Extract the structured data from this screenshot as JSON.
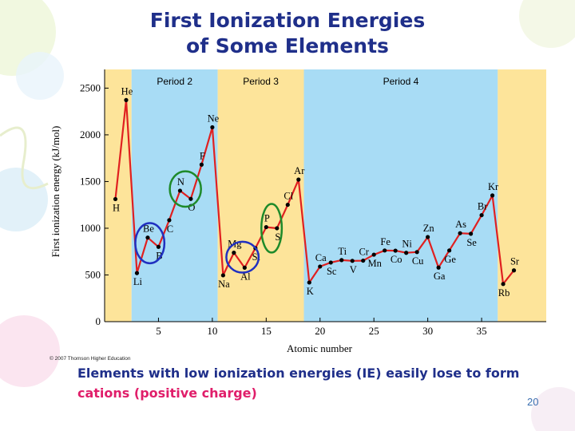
{
  "slide": {
    "title_line1": "First Ionization Energies",
    "title_line2": "of Some Elements",
    "caption_main": "Elements with low ionization energies (IE) easily lose to form",
    "caption_highlight": "cations (positive charge)",
    "copyright": "© 2007 Thomson Higher Education",
    "slide_number": "20",
    "colors": {
      "title": "#1f2f8a",
      "highlight": "#e01e6a",
      "line": "#e02020",
      "period_yellow": "#fde49a",
      "period_blue": "#a8dcf5",
      "circle_green": "#1e8a2a",
      "circle_blue": "#2030c0"
    }
  },
  "chart_data": {
    "type": "line",
    "xlabel": "Atomic number",
    "ylabel": "First ionization energy (kJ/mol)",
    "xlim": [
      0,
      41
    ],
    "ylim": [
      0,
      2700
    ],
    "x_ticks": [
      5,
      10,
      15,
      20,
      25,
      30,
      35
    ],
    "y_ticks": [
      0,
      500,
      1000,
      1500,
      2000,
      2500
    ],
    "periods": [
      {
        "label": "",
        "from": 0,
        "to": 2.5,
        "color": "yellow"
      },
      {
        "label": "Period 2",
        "from": 2.5,
        "to": 10.5,
        "color": "blue"
      },
      {
        "label": "Period 3",
        "from": 10.5,
        "to": 18.5,
        "color": "yellow"
      },
      {
        "label": "Period 4",
        "from": 18.5,
        "to": 36.5,
        "color": "blue"
      },
      {
        "label": "",
        "from": 36.5,
        "to": 41,
        "color": "yellow"
      }
    ],
    "series": [
      {
        "points": [
          {
            "z": 1,
            "symbol": "H",
            "ie": 1312,
            "pos": "below"
          },
          {
            "z": 2,
            "symbol": "He",
            "ie": 2372,
            "pos": "above"
          },
          {
            "z": 3,
            "symbol": "Li",
            "ie": 520,
            "pos": "below"
          },
          {
            "z": 4,
            "symbol": "Be",
            "ie": 900,
            "pos": "above"
          },
          {
            "z": 5,
            "symbol": "B",
            "ie": 801,
            "pos": "below"
          },
          {
            "z": 6,
            "symbol": "C",
            "ie": 1086,
            "pos": "below"
          },
          {
            "z": 7,
            "symbol": "N",
            "ie": 1402,
            "pos": "above"
          },
          {
            "z": 8,
            "symbol": "O",
            "ie": 1314,
            "pos": "below"
          },
          {
            "z": 9,
            "symbol": "F",
            "ie": 1681,
            "pos": "above"
          },
          {
            "z": 10,
            "symbol": "Ne",
            "ie": 2081,
            "pos": "above"
          },
          {
            "z": 11,
            "symbol": "Na",
            "ie": 496,
            "pos": "below"
          },
          {
            "z": 12,
            "symbol": "Mg",
            "ie": 738,
            "pos": "above"
          },
          {
            "z": 13,
            "symbol": "Al",
            "ie": 578,
            "pos": "below"
          },
          {
            "z": 14,
            "symbol": "Si",
            "ie": 787,
            "pos": "below"
          },
          {
            "z": 15,
            "symbol": "P",
            "ie": 1012,
            "pos": "above"
          },
          {
            "z": 16,
            "symbol": "S",
            "ie": 1000,
            "pos": "below"
          },
          {
            "z": 17,
            "symbol": "Cl",
            "ie": 1251,
            "pos": "above"
          },
          {
            "z": 18,
            "symbol": "Ar",
            "ie": 1521,
            "pos": "above"
          },
          {
            "z": 19,
            "symbol": "K",
            "ie": 419,
            "pos": "below"
          },
          {
            "z": 20,
            "symbol": "Ca",
            "ie": 590,
            "pos": "above"
          },
          {
            "z": 21,
            "symbol": "Sc",
            "ie": 633,
            "pos": "below"
          },
          {
            "z": 22,
            "symbol": "Ti",
            "ie": 659,
            "pos": "above"
          },
          {
            "z": 23,
            "symbol": "V",
            "ie": 651,
            "pos": "below"
          },
          {
            "z": 24,
            "symbol": "Cr",
            "ie": 653,
            "pos": "above"
          },
          {
            "z": 25,
            "symbol": "Mn",
            "ie": 717,
            "pos": "below"
          },
          {
            "z": 26,
            "symbol": "Fe",
            "ie": 762,
            "pos": "above"
          },
          {
            "z": 27,
            "symbol": "Co",
            "ie": 760,
            "pos": "below"
          },
          {
            "z": 28,
            "symbol": "Ni",
            "ie": 737,
            "pos": "above"
          },
          {
            "z": 29,
            "symbol": "Cu",
            "ie": 745,
            "pos": "below"
          },
          {
            "z": 30,
            "symbol": "Zn",
            "ie": 906,
            "pos": "above"
          },
          {
            "z": 31,
            "symbol": "Ga",
            "ie": 579,
            "pos": "below"
          },
          {
            "z": 32,
            "symbol": "Ge",
            "ie": 762,
            "pos": "below"
          },
          {
            "z": 33,
            "symbol": "As",
            "ie": 947,
            "pos": "above"
          },
          {
            "z": 34,
            "symbol": "Se",
            "ie": 941,
            "pos": "below"
          },
          {
            "z": 35,
            "symbol": "Br",
            "ie": 1140,
            "pos": "above"
          },
          {
            "z": 36,
            "symbol": "Kr",
            "ie": 1351,
            "pos": "above"
          },
          {
            "z": 37,
            "symbol": "Rb",
            "ie": 403,
            "pos": "below"
          },
          {
            "z": 38,
            "symbol": "Sr",
            "ie": 549,
            "pos": "above"
          }
        ]
      }
    ],
    "annotations": [
      {
        "type": "circle",
        "color": "green",
        "center_z": 7.5,
        "center_ie": 1420,
        "span_z": 2.9,
        "span_ie": 380
      },
      {
        "type": "circle",
        "color": "blue",
        "center_z": 4.2,
        "center_ie": 840,
        "span_z": 2.7,
        "span_ie": 430
      },
      {
        "type": "circle",
        "color": "blue",
        "center_z": 12.8,
        "center_ie": 690,
        "span_z": 3.0,
        "span_ie": 330
      },
      {
        "type": "circle",
        "color": "green",
        "center_z": 15.5,
        "center_ie": 1000,
        "span_z": 1.9,
        "span_ie": 520
      }
    ]
  }
}
